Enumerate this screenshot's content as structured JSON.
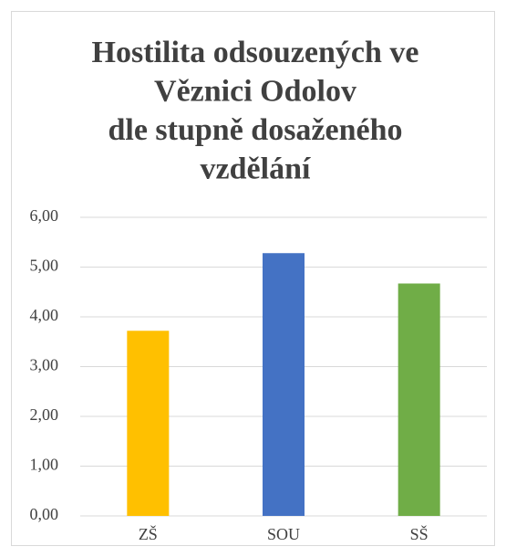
{
  "chart_data": {
    "type": "bar",
    "title": [
      "Hostilita odsouzených ve",
      "Věznici Odolov",
      "dle stupně dosaženého",
      "vzdělání"
    ],
    "categories": [
      "ZŠ",
      "SOU",
      "SŠ"
    ],
    "values": [
      3.72,
      5.28,
      4.67
    ],
    "colors": [
      "#ffc000",
      "#4472c4",
      "#70ad47"
    ],
    "ylim": [
      0,
      6
    ],
    "yticks": [
      {
        "value": 0,
        "label": "0,00"
      },
      {
        "value": 1,
        "label": "1,00"
      },
      {
        "value": 2,
        "label": "2,00"
      },
      {
        "value": 3,
        "label": "3,00"
      },
      {
        "value": 4,
        "label": "4,00"
      },
      {
        "value": 5,
        "label": "5,00"
      },
      {
        "value": 6,
        "label": "6,00"
      }
    ],
    "grid": true
  }
}
